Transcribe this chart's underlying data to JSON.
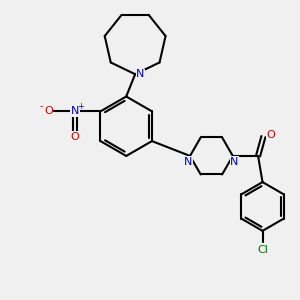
{
  "background_color": "#f0f0f0",
  "bond_color": "#000000",
  "N_color": "#0000cc",
  "O_color": "#cc0000",
  "Cl_color": "#007700",
  "line_width": 1.5,
  "figsize": [
    3.0,
    3.0
  ],
  "dpi": 100,
  "xlim": [
    0,
    10
  ],
  "ylim": [
    0,
    10
  ]
}
